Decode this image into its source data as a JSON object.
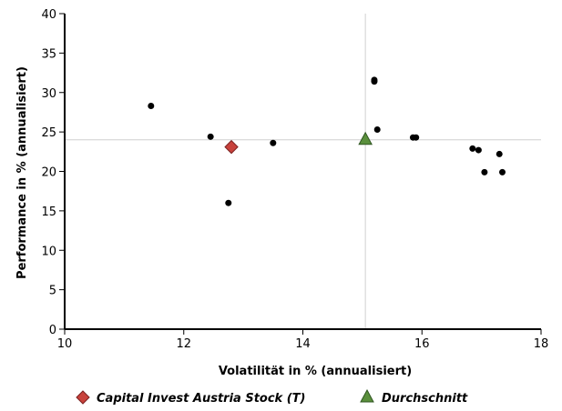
{
  "chart_data": {
    "type": "scatter",
    "xlabel": "Volatilität in % (annualisiert)",
    "ylabel": "Performance in % (annualisiert)",
    "xlim": [
      10,
      18
    ],
    "ylim": [
      0,
      40
    ],
    "x_ticks": [
      10,
      12,
      14,
      16,
      18
    ],
    "y_ticks": [
      0,
      5,
      10,
      15,
      20,
      25,
      30,
      35,
      40
    ],
    "grid": false,
    "reference_lines": {
      "x": 15.05,
      "y": 24.0
    },
    "legend_position": "bottom",
    "series": [
      {
        "color": "#000000",
        "marker": "circle",
        "points": [
          {
            "x": 11.45,
            "y": 28.3
          },
          {
            "x": 12.45,
            "y": 24.4
          },
          {
            "x": 12.75,
            "y": 16.0
          },
          {
            "x": 13.5,
            "y": 23.6
          },
          {
            "x": 15.2,
            "y": 31.6
          },
          {
            "x": 15.2,
            "y": 31.4
          },
          {
            "x": 15.25,
            "y": 25.3
          },
          {
            "x": 15.85,
            "y": 24.3
          },
          {
            "x": 15.9,
            "y": 24.3
          },
          {
            "x": 16.85,
            "y": 22.9
          },
          {
            "x": 16.95,
            "y": 22.7
          },
          {
            "x": 17.05,
            "y": 19.9
          },
          {
            "x": 17.3,
            "y": 22.2
          },
          {
            "x": 17.35,
            "y": 19.9
          }
        ]
      },
      {
        "name": "Capital Invest Austria Stock (T)",
        "color": "#c8423c",
        "marker": "diamond",
        "points": [
          {
            "x": 12.8,
            "y": 23.1
          }
        ]
      },
      {
        "name": "Durchschnitt",
        "color": "#5a8f3c",
        "marker": "triangle",
        "points": [
          {
            "x": 15.05,
            "y": 24.0
          }
        ]
      }
    ]
  }
}
